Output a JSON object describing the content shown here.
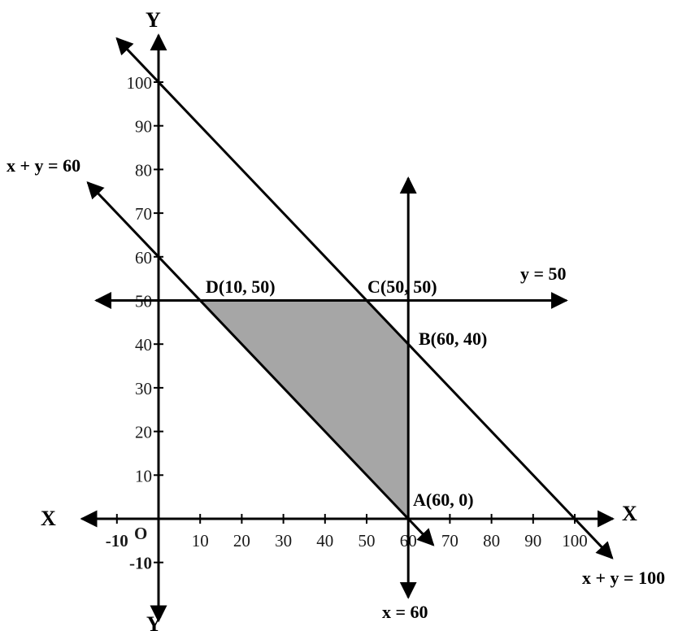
{
  "chart_data": {
    "type": "line",
    "axes": {
      "x_positive_label": "X",
      "x_negative_label": "X",
      "y_positive_label": "Y",
      "y_negative_label": "Y",
      "origin_label": "O",
      "x_ticks": [
        -10,
        10,
        20,
        30,
        40,
        50,
        60,
        70,
        80,
        90,
        100
      ],
      "x_tick_labels": [
        "-10",
        "10",
        "20",
        "30",
        "40",
        "50",
        "60",
        "70",
        "80",
        "90",
        "100"
      ],
      "y_ticks": [
        -10,
        10,
        20,
        30,
        40,
        50,
        60,
        70,
        80,
        90,
        100
      ],
      "y_tick_labels": [
        "-10",
        "10",
        "20",
        "30",
        "40",
        "50",
        "60",
        "70",
        "80",
        "90",
        "100"
      ],
      "xlim": [
        -20,
        108
      ],
      "ylim": [
        -20,
        113
      ]
    },
    "lines": [
      {
        "label": "x + y = 60",
        "p1": [
          -17,
          77
        ],
        "p2": [
          66,
          -6
        ]
      },
      {
        "label": "x + y = 100",
        "p1": [
          -10,
          110
        ],
        "p2": [
          109,
          -9
        ]
      },
      {
        "label": "y = 50",
        "p1": [
          -15,
          50
        ],
        "p2": [
          98,
          50
        ]
      },
      {
        "label": "x = 60",
        "p1": [
          60,
          -18
        ],
        "p2": [
          60,
          78
        ]
      }
    ],
    "feasible_region": {
      "vertices": [
        [
          10,
          50
        ],
        [
          50,
          50
        ],
        [
          60,
          40
        ],
        [
          60,
          0
        ]
      ],
      "fill": "#a6a6a6"
    },
    "points": [
      {
        "label": "D(10, 50)",
        "x": 10,
        "y": 50
      },
      {
        "label": "C(50, 50)",
        "x": 50,
        "y": 50
      },
      {
        "label": "B(60, 40)",
        "x": 60,
        "y": 40
      },
      {
        "label": "A(60, 0)",
        "x": 60,
        "y": 0
      }
    ]
  }
}
